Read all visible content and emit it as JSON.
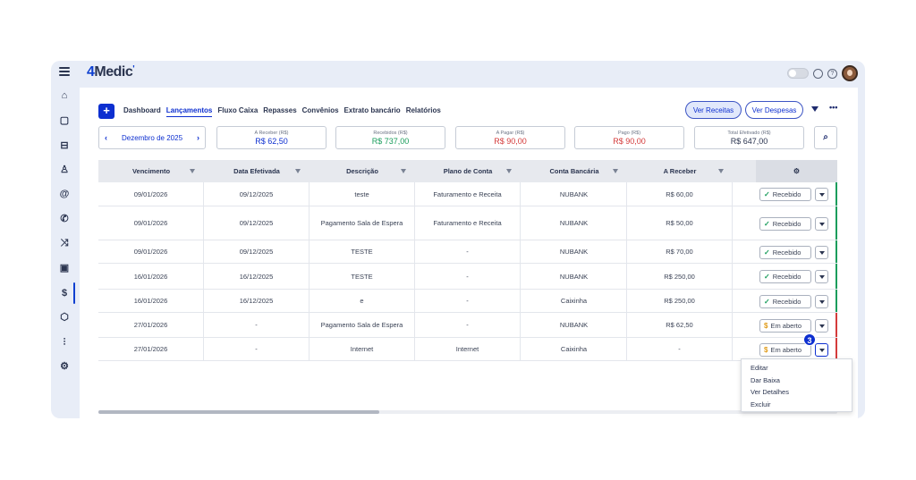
{
  "app": {
    "logo_prefix": "4",
    "logo_name": "Medic",
    "logo_mark": "'"
  },
  "sidebar": {
    "items": [
      {
        "name": "home-icon",
        "glyph": "⌂"
      },
      {
        "name": "calendar-icon",
        "glyph": "▢"
      },
      {
        "name": "car-icon",
        "glyph": "⊟"
      },
      {
        "name": "user-icon",
        "glyph": "♙"
      },
      {
        "name": "at-icon",
        "glyph": "@"
      },
      {
        "name": "phone-icon",
        "glyph": "✆"
      },
      {
        "name": "shuffle-icon",
        "glyph": "⤨"
      },
      {
        "name": "clipboard-icon",
        "glyph": "▣"
      },
      {
        "name": "dollar-icon",
        "glyph": "$"
      },
      {
        "name": "box-icon",
        "glyph": "⬡"
      },
      {
        "name": "chart-icon",
        "glyph": "⫶"
      },
      {
        "name": "settings-icon",
        "glyph": "⚙"
      }
    ]
  },
  "toolbar": {
    "add_label": "+",
    "tabs": [
      {
        "label": "Dashboard",
        "active": false
      },
      {
        "label": "Lançamentos",
        "active": true
      },
      {
        "label": "Fluxo Caixa",
        "active": false
      },
      {
        "label": "Repasses",
        "active": false
      },
      {
        "label": "Convênios",
        "active": false
      },
      {
        "label": "Extrato bancário",
        "active": false
      },
      {
        "label": "Relatórios",
        "active": false
      }
    ],
    "ver_receitas": "Ver Receitas",
    "ver_despesas": "Ver Despesas",
    "more": "•••"
  },
  "period": {
    "label": "Dezembro de 2025",
    "prev": "‹",
    "next": "›"
  },
  "summary": [
    {
      "label": "A Receber (R$)",
      "value": "R$ 62,50",
      "color": "blue"
    },
    {
      "label": "Recebidos (R$)",
      "value": "R$ 737,00",
      "color": "green"
    },
    {
      "label": "A Pagar (R$)",
      "value": "R$ 90,00",
      "color": "red"
    },
    {
      "label": "Pago (R$)",
      "value": "R$ 90,00",
      "color": "red"
    },
    {
      "label": "Total Efetivado (R$)",
      "value": "R$ 647,00",
      "color": "dark"
    }
  ],
  "table": {
    "columns": [
      "Vencimento",
      "Data Efetivada",
      "Descrição",
      "Plano de Conta",
      "Conta Bancária",
      "A Receber"
    ],
    "action_header": "⚙",
    "rows": [
      {
        "vencimento": "09/01/2026",
        "efetivada": "09/12/2025",
        "descricao": "teste",
        "plano": "Faturamento e Receita",
        "conta": "NUBANK",
        "receber": "R$ 60,00",
        "status": "Recebido"
      },
      {
        "vencimento": "09/01/2026",
        "efetivada": "09/12/2025",
        "descricao": "Pagamento Sala de Espera",
        "plano": "Faturamento e Receita",
        "conta": "NUBANK",
        "receber": "R$ 50,00",
        "status": "Recebido"
      },
      {
        "vencimento": "09/01/2026",
        "efetivada": "09/12/2025",
        "descricao": "TESTE",
        "plano": "-",
        "conta": "NUBANK",
        "receber": "R$ 70,00",
        "status": "Recebido"
      },
      {
        "vencimento": "16/01/2026",
        "efetivada": "16/12/2025",
        "descricao": "TESTE",
        "plano": "-",
        "conta": "NUBANK",
        "receber": "R$ 250,00",
        "status": "Recebido"
      },
      {
        "vencimento": "16/01/2026",
        "efetivada": "16/12/2025",
        "descricao": "e",
        "plano": "-",
        "conta": "Caixinha",
        "receber": "R$ 250,00",
        "status": "Recebido"
      },
      {
        "vencimento": "27/01/2026",
        "efetivada": "-",
        "descricao": "Pagamento Sala de Espera",
        "plano": "-",
        "conta": "NUBANK",
        "receber": "R$ 62,50",
        "status": "Em aberto"
      },
      {
        "vencimento": "27/01/2026",
        "efetivada": "-",
        "descricao": "Internet",
        "plano": "Internet",
        "conta": "Caixinha",
        "receber": "-",
        "status": "Em aberto"
      }
    ]
  },
  "step_badge": "3",
  "context_menu": [
    "Editar",
    "Dar Baixa",
    "Ver Detalhes",
    "Excluir"
  ],
  "colors": {
    "accent": "#0d2fd0",
    "success": "#1a9d5c",
    "danger": "#d43b3b",
    "warning": "#e09b18"
  }
}
